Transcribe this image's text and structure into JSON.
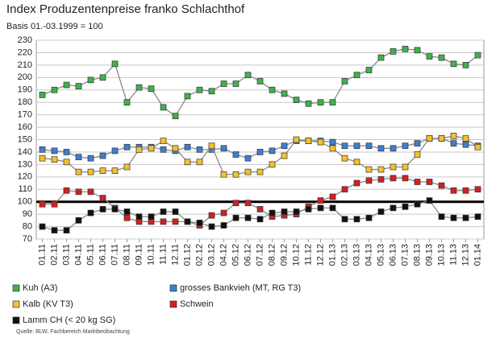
{
  "chart_data": {
    "type": "line",
    "title": "Index Produzentenpreise franko Schlachthof",
    "subtitle": "Basis 01.-03.1999 = 100",
    "source": "Quelle: BLW, Fachbereich Marktbeobachtung",
    "categories": [
      "01.11",
      "02.11",
      "03.11",
      "04.11",
      "05.11",
      "06.11",
      "07.11",
      "08.11",
      "09.11",
      "10.11",
      "11.11",
      "12.11",
      "01.12",
      "02.12",
      "03.12",
      "04.12",
      "05.12",
      "06.12",
      "07.12",
      "08.12",
      "09.12",
      "10.12",
      "11.12",
      "12.12",
      "01.13",
      "02.13",
      "03.13",
      "04.13",
      "05.13",
      "06.13",
      "07.13",
      "08.13",
      "09.13",
      "10.13",
      "11.13",
      "12.13",
      "01.14"
    ],
    "series": [
      {
        "name": "Kuh (A3)",
        "color": "#3cb44b",
        "values": [
          186,
          190,
          194,
          193,
          198,
          200,
          211,
          180,
          192,
          191,
          176,
          169,
          185,
          190,
          189,
          195,
          195,
          202,
          197,
          190,
          187,
          182,
          179,
          180,
          180,
          197,
          202,
          206,
          216,
          221,
          223,
          222,
          217,
          216,
          211,
          210,
          218
        ]
      },
      {
        "name": "grosses Bankvieh (MT, RG T3)",
        "color": "#3f7fd0",
        "values": [
          142,
          141,
          140,
          136,
          135,
          137,
          141,
          144,
          144,
          144,
          142,
          141,
          144,
          142,
          142,
          143,
          138,
          135,
          140,
          141,
          145,
          149,
          149,
          149,
          148,
          145,
          145,
          145,
          143,
          143,
          145,
          147,
          151,
          151,
          147,
          146,
          145
        ]
      },
      {
        "name": "Kalb (KV T3)",
        "color": "#f2c12e",
        "values": [
          135,
          134,
          132,
          124,
          124,
          125,
          125,
          128,
          142,
          143,
          149,
          143,
          132,
          132,
          145,
          122,
          122,
          124,
          124,
          130,
          137,
          150,
          149,
          148,
          143,
          135,
          132,
          126,
          126,
          128,
          128,
          138,
          151,
          151,
          153,
          151,
          144
        ]
      },
      {
        "name": "Schwein",
        "color": "#d42020",
        "values": [
          98,
          98,
          109,
          108,
          108,
          103,
          95,
          87,
          84,
          84,
          84,
          84,
          84,
          81,
          89,
          91,
          99,
          99,
          94,
          88,
          89,
          90,
          96,
          101,
          104,
          110,
          115,
          117,
          118,
          119,
          119,
          116,
          116,
          113,
          109,
          109,
          110
        ]
      },
      {
        "name": "Lamm CH (< 20 kg SG)",
        "color": "#111111",
        "values": [
          80,
          77,
          77,
          85,
          91,
          94,
          94,
          92,
          88,
          88,
          92,
          92,
          84,
          83,
          80,
          81,
          87,
          87,
          86,
          91,
          92,
          92,
          94,
          95,
          95,
          86,
          86,
          87,
          92,
          95,
          96,
          98,
          101,
          88,
          87,
          87,
          88
        ]
      }
    ],
    "line_color": "#8a8a8a",
    "reference_line": 100,
    "ylim": [
      70,
      230
    ],
    "yticks": [
      70,
      80,
      90,
      100,
      110,
      120,
      130,
      140,
      150,
      160,
      170,
      180,
      190,
      200,
      210,
      220,
      230
    ],
    "grid": true
  }
}
